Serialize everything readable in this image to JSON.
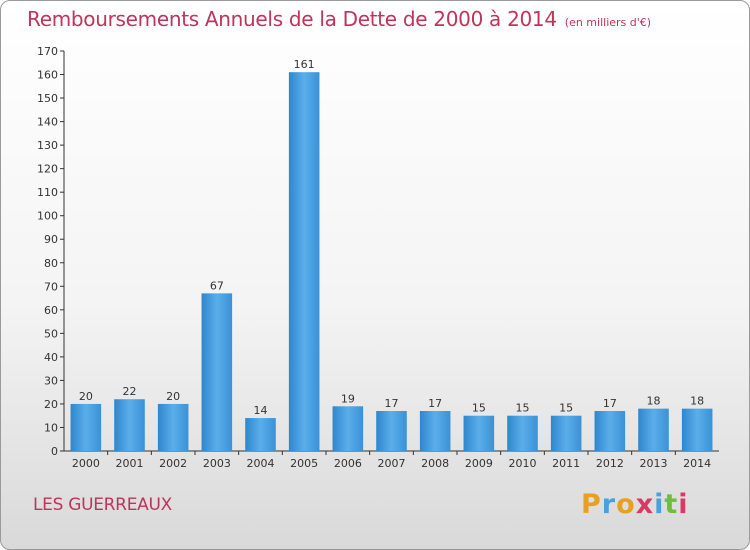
{
  "chart_data": {
    "type": "bar",
    "title": "Remboursements Annuels de la Dette de 2000 à 2014",
    "subtitle": "(en milliers d'€)",
    "categories": [
      "2000",
      "2001",
      "2002",
      "2003",
      "2004",
      "2005",
      "2006",
      "2007",
      "2008",
      "2009",
      "2010",
      "2011",
      "2012",
      "2013",
      "2014"
    ],
    "values": [
      20,
      22,
      20,
      67,
      14,
      161,
      19,
      17,
      17,
      15,
      15,
      15,
      17,
      18,
      18
    ],
    "ylim": [
      0,
      170
    ],
    "yticks": [
      0,
      10,
      20,
      30,
      40,
      50,
      60,
      70,
      80,
      90,
      100,
      110,
      120,
      130,
      140,
      150,
      160,
      170
    ],
    "xlabel": "",
    "ylabel": "",
    "grid": false,
    "bar_color": "#4a9fe0"
  },
  "footer": {
    "place_name": "LES GUERREAUX",
    "logo_text": "Proxiti",
    "logo_colors": [
      "#e8a020",
      "#4aa0dc",
      "#e8a020",
      "#d93a64",
      "#4aa0dc",
      "#6cbf3a",
      "#d93a64"
    ]
  }
}
